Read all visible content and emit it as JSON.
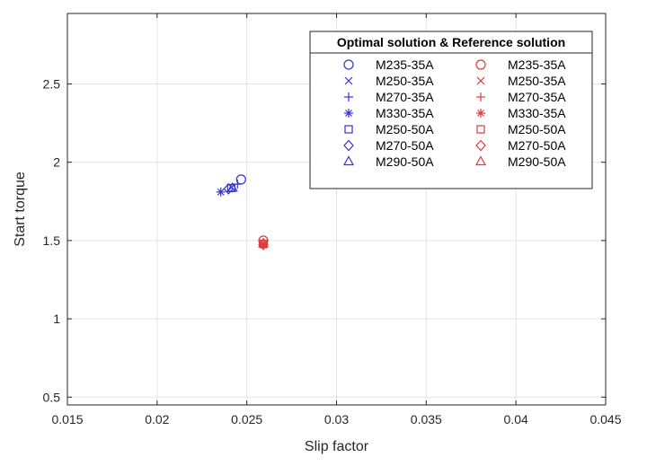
{
  "chart_data": {
    "type": "scatter",
    "xlabel": "Slip factor",
    "ylabel": "Start torque",
    "xlim": [
      0.015,
      0.045
    ],
    "ylim": [
      0.45,
      2.95
    ],
    "xticks": [
      "0.015",
      "0.02",
      "0.025",
      "0.03",
      "0.035",
      "0.04",
      "0.045"
    ],
    "yticks": [
      "0.5",
      "1",
      "1.5",
      "2",
      "2.5"
    ],
    "grid": true,
    "legend": {
      "title": "Optimal solution & Reference solution",
      "placement": "top-right",
      "columns": 2
    },
    "colors": {
      "optimal": "#3333dd",
      "reference": "#e03a3a"
    },
    "series": [
      {
        "name": "M235-35A",
        "group": "optimal",
        "marker": "circle",
        "x": 0.02468,
        "y": 1.89
      },
      {
        "name": "M250-35A",
        "group": "optimal",
        "marker": "x",
        "x": 0.02415,
        "y": 1.84
      },
      {
        "name": "M270-35A",
        "group": "optimal",
        "marker": "plus",
        "x": 0.02448,
        "y": 1.86
      },
      {
        "name": "M330-35A",
        "group": "optimal",
        "marker": "asterisk",
        "x": 0.02355,
        "y": 1.81
      },
      {
        "name": "M250-50A",
        "group": "optimal",
        "marker": "square",
        "x": 0.02413,
        "y": 1.835
      },
      {
        "name": "M270-50A",
        "group": "optimal",
        "marker": "diamond",
        "x": 0.02398,
        "y": 1.83
      },
      {
        "name": "M290-50A",
        "group": "optimal",
        "marker": "triangle",
        "x": 0.0242,
        "y": 1.835
      },
      {
        "name": "M235-35A",
        "group": "reference",
        "marker": "circle",
        "x": 0.02592,
        "y": 1.5
      },
      {
        "name": "M250-35A",
        "group": "reference",
        "marker": "x",
        "x": 0.02592,
        "y": 1.48
      },
      {
        "name": "M270-35A",
        "group": "reference",
        "marker": "plus",
        "x": 0.02592,
        "y": 1.485
      },
      {
        "name": "M330-35A",
        "group": "reference",
        "marker": "asterisk",
        "x": 0.02592,
        "y": 1.47
      },
      {
        "name": "M250-50A",
        "group": "reference",
        "marker": "square",
        "x": 0.02592,
        "y": 1.48
      },
      {
        "name": "M270-50A",
        "group": "reference",
        "marker": "diamond",
        "x": 0.02592,
        "y": 1.475
      },
      {
        "name": "M290-50A",
        "group": "reference",
        "marker": "triangle",
        "x": 0.02592,
        "y": 1.48
      }
    ]
  }
}
